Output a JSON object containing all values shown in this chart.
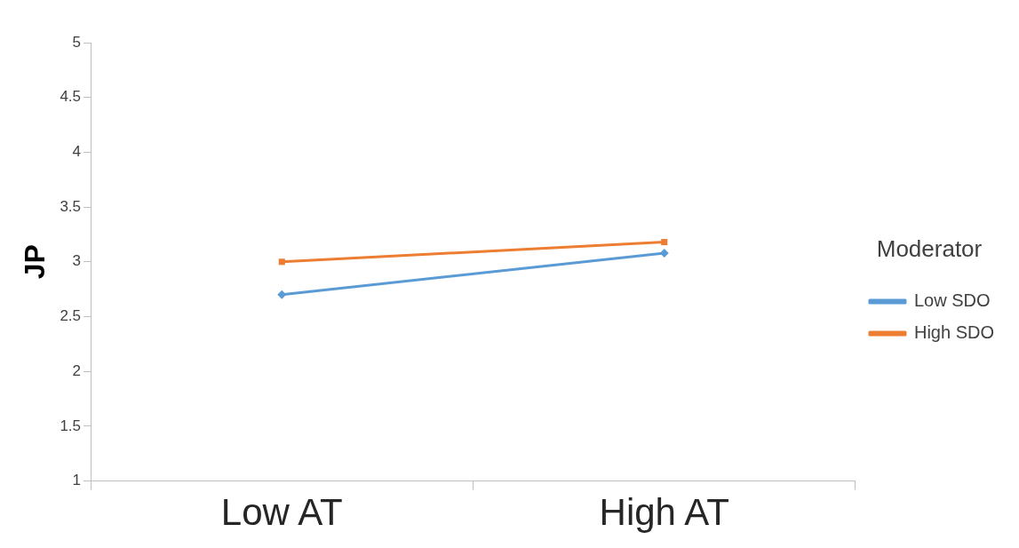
{
  "chart_data": {
    "type": "line",
    "ylabel": "JP",
    "legend_title": "Moderator",
    "legend": "right",
    "categories": [
      "Low AT",
      "High AT"
    ],
    "series": [
      {
        "name": "Low SDO",
        "color": "#5b9bd5",
        "values": [
          2.7,
          3.08
        ],
        "marker": "diamond"
      },
      {
        "name": "High SDO",
        "color": "#ed7d31",
        "values": [
          3.0,
          3.18
        ],
        "marker": "square"
      }
    ],
    "ylim": [
      1,
      5
    ],
    "yticks": [
      1,
      1.5,
      2,
      2.5,
      3,
      3.5,
      4,
      4.5,
      5
    ],
    "grid": false
  }
}
